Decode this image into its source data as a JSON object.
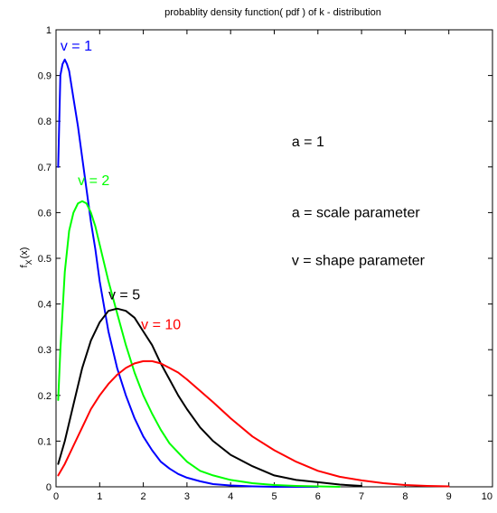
{
  "chart_data": {
    "type": "line",
    "title": "probablity density function( pdf ) of k - distribution",
    "xlabel": "",
    "ylabel": "f_X(x)",
    "ylabel_main": "f",
    "ylabel_sub": "X",
    "ylabel_arg": "(x)",
    "xlim": [
      0,
      10
    ],
    "ylim": [
      0,
      1
    ],
    "xticks": [
      "0",
      "1",
      "2",
      "3",
      "4",
      "5",
      "6",
      "7",
      "8",
      "9",
      "10"
    ],
    "yticks": [
      "0",
      "0.1",
      "0.2",
      "0.3",
      "0.4",
      "0.5",
      "0.6",
      "0.7",
      "0.8",
      "0.9",
      "1"
    ],
    "grid": false,
    "annotations": [
      {
        "text": "a = 1",
        "x": 5.4,
        "y": 0.745
      },
      {
        "text": "a = scale parameter",
        "x": 5.4,
        "y": 0.59
      },
      {
        "text": "v = shape parameter",
        "x": 5.4,
        "y": 0.485
      }
    ],
    "series": [
      {
        "name": "v = 1",
        "color": "#0000ff",
        "label_pos": [
          0.1,
          0.955
        ],
        "x": [
          0.05,
          0.1,
          0.15,
          0.2,
          0.25,
          0.3,
          0.35,
          0.4,
          0.5,
          0.6,
          0.7,
          0.8,
          0.9,
          1.0,
          1.2,
          1.4,
          1.6,
          1.8,
          2.0,
          2.2,
          2.4,
          2.6,
          2.8,
          3.0,
          3.3,
          3.6,
          4.0,
          4.5,
          5.0,
          5.5,
          6.0
        ],
        "y": [
          0.7,
          0.9,
          0.925,
          0.935,
          0.925,
          0.91,
          0.88,
          0.85,
          0.79,
          0.72,
          0.65,
          0.58,
          0.52,
          0.45,
          0.34,
          0.26,
          0.2,
          0.15,
          0.11,
          0.08,
          0.055,
          0.04,
          0.028,
          0.02,
          0.012,
          0.006,
          0.003,
          0.001,
          0.0,
          0.0,
          0.0
        ]
      },
      {
        "name": "v = 2",
        "color": "#00ff00",
        "label_pos": [
          0.5,
          0.66
        ],
        "x": [
          0.05,
          0.1,
          0.2,
          0.3,
          0.4,
          0.5,
          0.6,
          0.7,
          0.8,
          0.9,
          1.0,
          1.2,
          1.4,
          1.6,
          1.8,
          2.0,
          2.2,
          2.4,
          2.6,
          2.8,
          3.0,
          3.3,
          3.6,
          4.0,
          4.5,
          5.0,
          5.5,
          6.0,
          6.5
        ],
        "y": [
          0.19,
          0.3,
          0.47,
          0.56,
          0.6,
          0.62,
          0.625,
          0.62,
          0.6,
          0.57,
          0.53,
          0.45,
          0.38,
          0.31,
          0.25,
          0.2,
          0.16,
          0.125,
          0.095,
          0.075,
          0.055,
          0.035,
          0.025,
          0.015,
          0.008,
          0.004,
          0.002,
          0.001,
          0.0
        ]
      },
      {
        "name": "v = 5",
        "color": "#000000",
        "label_pos": [
          1.2,
          0.41
        ],
        "x": [
          0.05,
          0.2,
          0.4,
          0.6,
          0.8,
          1.0,
          1.2,
          1.4,
          1.6,
          1.8,
          2.0,
          2.2,
          2.4,
          2.6,
          2.8,
          3.0,
          3.3,
          3.6,
          4.0,
          4.5,
          5.0,
          5.5,
          6.0,
          6.5,
          7.0
        ],
        "y": [
          0.05,
          0.1,
          0.18,
          0.26,
          0.32,
          0.36,
          0.385,
          0.39,
          0.385,
          0.37,
          0.34,
          0.31,
          0.27,
          0.235,
          0.2,
          0.17,
          0.13,
          0.1,
          0.07,
          0.045,
          0.025,
          0.015,
          0.01,
          0.005,
          0.002
        ]
      },
      {
        "name": "v = 10",
        "color": "#ff0000",
        "label_pos": [
          1.95,
          0.345
        ],
        "x": [
          0.05,
          0.2,
          0.4,
          0.6,
          0.8,
          1.0,
          1.2,
          1.4,
          1.6,
          1.8,
          2.0,
          2.2,
          2.4,
          2.6,
          2.8,
          3.0,
          3.3,
          3.6,
          4.0,
          4.5,
          5.0,
          5.5,
          6.0,
          6.5,
          7.0,
          7.5,
          8.0,
          8.5,
          9.0
        ],
        "y": [
          0.025,
          0.05,
          0.09,
          0.13,
          0.17,
          0.2,
          0.225,
          0.245,
          0.26,
          0.27,
          0.275,
          0.275,
          0.27,
          0.26,
          0.25,
          0.235,
          0.21,
          0.185,
          0.15,
          0.11,
          0.08,
          0.055,
          0.035,
          0.022,
          0.014,
          0.008,
          0.004,
          0.002,
          0.001
        ]
      }
    ]
  }
}
